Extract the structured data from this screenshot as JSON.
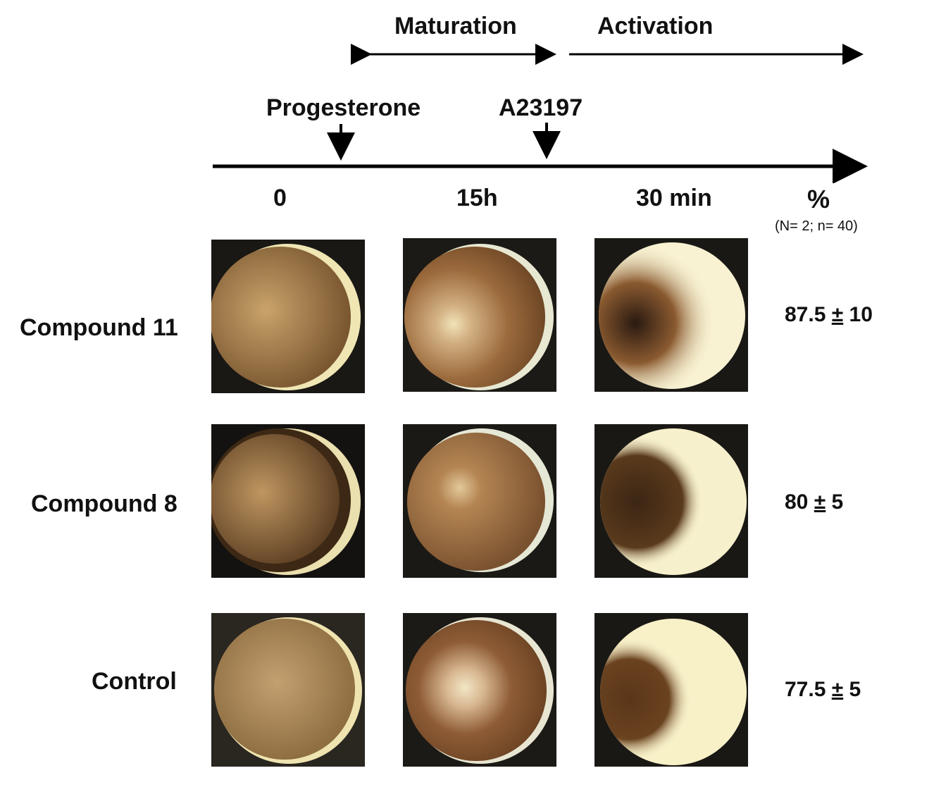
{
  "phases": {
    "maturation": "Maturation",
    "activation": "Activation"
  },
  "triggers": {
    "progesterone": "Progesterone",
    "a23197": "A23197"
  },
  "timepoints": [
    "0",
    "15h",
    "30 min"
  ],
  "percent_header": "%",
  "sample_note": "(N= 2; n= 40)",
  "rows": [
    {
      "label": "Compound 11",
      "value": "87.5",
      "pm": "±",
      "err": "10"
    },
    {
      "label": "Compound 8",
      "value": "80",
      "pm": "±",
      "err": "5"
    },
    {
      "label": "Control",
      "value": "77.5",
      "pm": "±",
      "err": "5"
    }
  ],
  "colors": {
    "arrow": "#000000",
    "oocyte_dark": "#3a2412",
    "oocyte_tan": "#b58a56",
    "oocyte_light": "#f4ecc0"
  }
}
